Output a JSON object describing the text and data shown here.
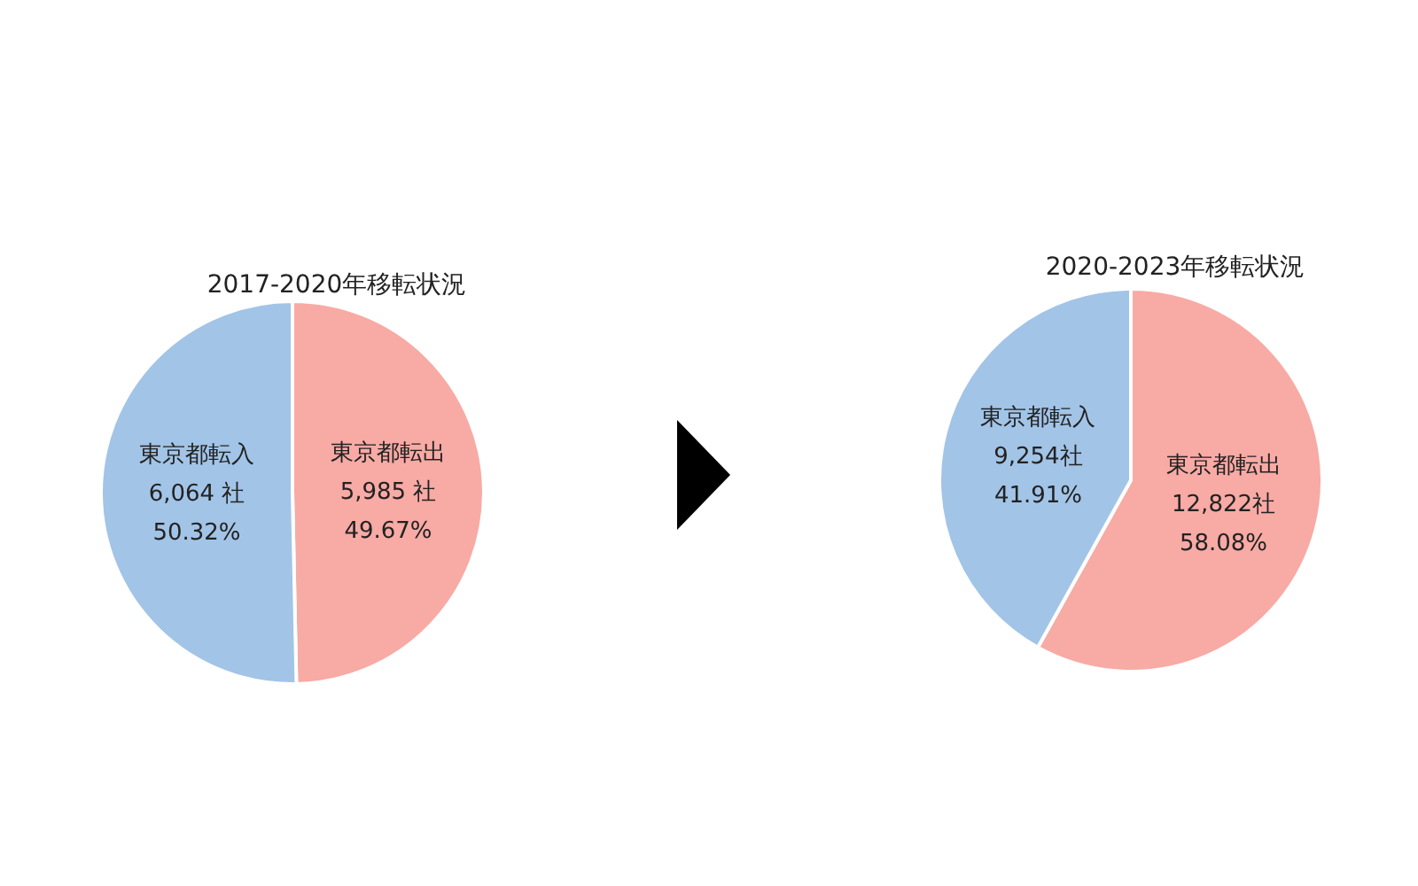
{
  "chart_data": [
    {
      "type": "pie",
      "title": "2017-2020年移転状況",
      "categories": [
        "東京都転出",
        "東京都転入"
      ],
      "values": [
        5985,
        6064
      ],
      "colors": [
        "#f8aaa5",
        "#a2c4e7"
      ],
      "value_labels": [
        "5,985 社\n49.67%",
        "6,064 社\n50.32%"
      ]
    },
    {
      "type": "pie",
      "title": "2020-2023年移転状況",
      "categories": [
        "東京都転出",
        "東京都転入"
      ],
      "values": [
        12822,
        9254
      ],
      "colors": [
        "#f8aaa5",
        "#a2c4e7"
      ],
      "value_labels": [
        "12,822社\n58.08%",
        "9,254社\n41.91%"
      ]
    }
  ]
}
